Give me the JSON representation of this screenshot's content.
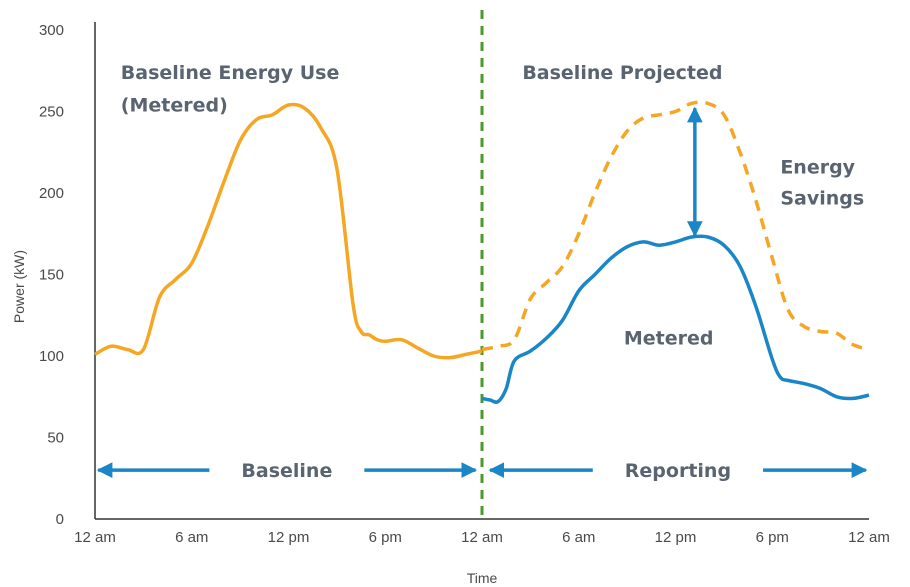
{
  "chart_data": {
    "type": "line",
    "xlabel": "Time",
    "ylabel": "Power (kW)",
    "ylim": [
      0,
      300
    ],
    "xlim": [
      0,
      48
    ],
    "y_ticks": [
      0,
      50,
      100,
      150,
      200,
      250,
      300
    ],
    "x_tick_labels": [
      {
        "x": 0,
        "label": "12 am"
      },
      {
        "x": 6,
        "label": "6 am"
      },
      {
        "x": 12,
        "label": "12 pm"
      },
      {
        "x": 18,
        "label": "6 pm"
      },
      {
        "x": 24,
        "label": "12 am"
      },
      {
        "x": 30,
        "label": "6 am"
      },
      {
        "x": 36,
        "label": "12 pm"
      },
      {
        "x": 42,
        "label": "6 pm"
      },
      {
        "x": 48,
        "label": "12 am"
      }
    ],
    "grid": false,
    "divider_x": 24,
    "colors": {
      "baseline": "#f5a623",
      "metered": "#1a86c8",
      "divider": "#4a9a2a",
      "arrow": "#1a86c8",
      "annotation": "#5a6470"
    },
    "series": [
      {
        "id": "baseline-metered",
        "style": "solid",
        "color": "#f5a623",
        "x": [
          0,
          1,
          2,
          3,
          4,
          5,
          6,
          7,
          8,
          9,
          10,
          11,
          12,
          13,
          14,
          15,
          16,
          16.5,
          17,
          17.5,
          18,
          19,
          20,
          21,
          22,
          23,
          24
        ],
        "y": [
          101,
          106,
          104,
          104,
          136,
          147,
          157,
          180,
          207,
          232,
          245,
          248,
          254,
          252,
          240,
          215,
          132,
          115,
          113,
          110,
          109,
          110,
          105,
          100,
          99,
          101,
          103
        ]
      },
      {
        "id": "baseline-projected",
        "style": "dashed",
        "color": "#f5a623",
        "x": [
          24,
          25,
          26,
          27,
          28,
          29,
          30,
          31,
          32,
          33,
          34,
          35,
          36,
          37,
          38,
          39,
          40,
          41,
          42,
          43,
          44,
          45,
          46,
          47,
          48
        ],
        "y": [
          104,
          106,
          110,
          135,
          145,
          155,
          175,
          200,
          222,
          238,
          246,
          248,
          250,
          255,
          255,
          248,
          225,
          195,
          160,
          128,
          118,
          115,
          114,
          107,
          104
        ]
      },
      {
        "id": "metered-reporting",
        "style": "solid",
        "color": "#1a86c8",
        "x": [
          24,
          24.5,
          25,
          25.5,
          26,
          27,
          28,
          29,
          30,
          31,
          32,
          33,
          34,
          35,
          36,
          37,
          38,
          39,
          40,
          41,
          42,
          42.5,
          43,
          44,
          45,
          46,
          47,
          48
        ],
        "y": [
          74,
          73,
          72,
          80,
          97,
          103,
          111,
          122,
          140,
          150,
          160,
          167,
          170,
          168,
          170,
          173,
          173,
          168,
          155,
          130,
          98,
          87,
          85,
          83,
          80,
          75,
          74,
          76
        ]
      }
    ],
    "annotations": {
      "baseline_energy_use_line1": "Baseline Energy Use",
      "baseline_energy_use_line2": "(Metered)",
      "baseline_projected": "Baseline Projected",
      "energy_savings_line1": "Energy",
      "energy_savings_line2": "Savings",
      "metered": "Metered",
      "baseline_period": "Baseline",
      "reporting_period": "Reporting"
    },
    "savings_arrow": {
      "x": 37.2,
      "y_top": 252,
      "y_bottom": 174
    },
    "period_arrows": [
      {
        "id": "baseline",
        "label_key": "baseline_period",
        "x_start": 0.2,
        "x_end": 23.6,
        "y": 30
      },
      {
        "id": "reporting",
        "label_key": "reporting_period",
        "x_start": 24.5,
        "x_end": 47.8,
        "y": 30
      }
    ]
  }
}
